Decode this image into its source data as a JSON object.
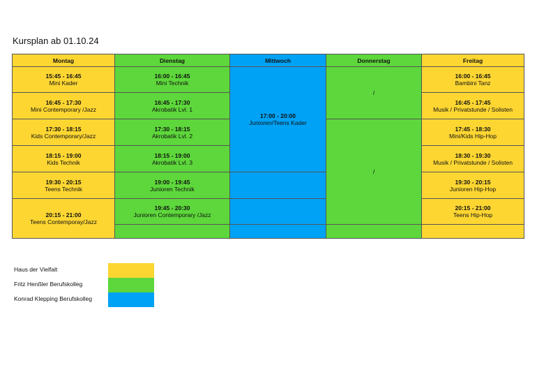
{
  "title": "Kursplan ab 01.10.24",
  "days": [
    "Montag",
    "Dienstag",
    "Mittwoch",
    "Donnerstag",
    "Freitag"
  ],
  "colors": {
    "yellow": "#fdd632",
    "green": "#5dd73b",
    "blue": "#00a2f5"
  },
  "montag": [
    {
      "time": "15:45 - 16:45",
      "label": "Mini Kader"
    },
    {
      "time": "16:45 - 17:30",
      "label": "Mini Contemporary /Jazz"
    },
    {
      "time": "17:30 - 18:15",
      "label": "Kids Contemporary/Jazz"
    },
    {
      "time": "18:15 - 19:00",
      "label": "Kids Technik"
    },
    {
      "time": "19:30 - 20:15",
      "label": "Teens Technik"
    },
    {
      "time": "20:15 - 21:00",
      "label": "Teens Contemporay/Jazz"
    }
  ],
  "dienstag": [
    {
      "time": "16:00 - 16:45",
      "label": "Mini Technik"
    },
    {
      "time": "16:45 - 17:30",
      "label": "Akrobatik Lvl. 1"
    },
    {
      "time": "17:30 - 18:15",
      "label": "Akrobatik Lvl. 2"
    },
    {
      "time": "18:15 - 19:00",
      "label": "Akrobatik Lvl. 3"
    },
    {
      "time": "19:00 - 19:45",
      "label": "Junioren Technik"
    },
    {
      "time": "19:45 - 20:30",
      "label": "Junioren Contemporary /Jazz"
    }
  ],
  "mittwoch": {
    "time": "17:00 - 20:00",
    "label": "Junioren/Teens Kader"
  },
  "donnerstag": [
    "/",
    "/"
  ],
  "freitag": [
    {
      "time": "16:00 - 16:45",
      "label": "Bambini Tanz"
    },
    {
      "time": "16:45 - 17:45",
      "label": "Musik / Privatstunde / Solisten"
    },
    {
      "time": "17:45 - 18:30",
      "label": "Mini/Kids Hip-Hop"
    },
    {
      "time": "18:30 - 19:30",
      "label": "Musik / Privatstunde / Solisten"
    },
    {
      "time": "19:30 - 20:15",
      "label": "Junioren Hip-Hop"
    },
    {
      "time": "20:15 - 21:00",
      "label": "Teens Hip-Hop"
    }
  ],
  "legend": [
    {
      "label": "Haus der Vielfalt",
      "color": "#fdd632"
    },
    {
      "label": "Fritz Henßler Berufskolleg",
      "color": "#5dd73b"
    },
    {
      "label": "Konrad Klepping Berufskolleg",
      "color": "#00a2f5"
    }
  ]
}
